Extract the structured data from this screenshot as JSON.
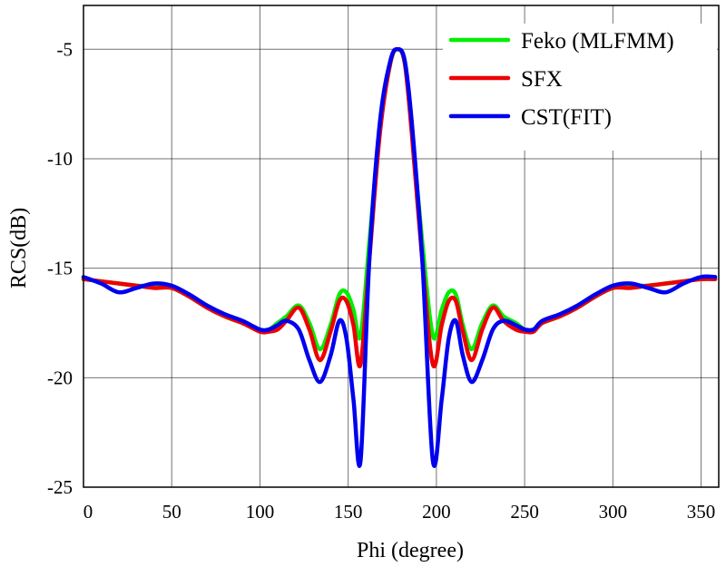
{
  "chart_data": {
    "type": "line",
    "title": "",
    "xlabel": "Phi  (degree)",
    "ylabel": "RCS(dB)",
    "xlim": [
      0,
      360
    ],
    "ylim": [
      -25,
      -3
    ],
    "xticks": [
      0,
      50,
      100,
      150,
      200,
      250,
      300,
      350
    ],
    "yticks": [
      -25,
      -20,
      -15,
      -10,
      -5
    ],
    "grid": true,
    "legend_position": "top-right",
    "x": [
      0,
      10,
      20,
      30,
      40,
      50,
      60,
      70,
      80,
      90,
      100,
      105,
      110,
      115,
      122,
      128,
      134,
      140,
      145,
      149,
      153,
      157,
      162,
      168,
      174,
      178,
      182,
      186,
      192,
      198,
      203,
      207,
      211,
      215,
      220,
      226,
      232,
      238,
      245,
      250,
      255,
      260,
      270,
      280,
      290,
      300,
      310,
      320,
      330,
      340,
      350,
      358
    ],
    "series": [
      {
        "name": "Feko (MLFMM)",
        "color": "#00ee00",
        "values": [
          -15.5,
          -15.6,
          -15.7,
          -15.8,
          -15.8,
          -15.9,
          -16.3,
          -16.8,
          -17.2,
          -17.5,
          -17.8,
          -17.8,
          -17.5,
          -17.2,
          -16.7,
          -17.5,
          -18.7,
          -17.6,
          -16.2,
          -16.1,
          -16.9,
          -18.1,
          -13.8,
          -8.6,
          -5.6,
          -5.0,
          -5.6,
          -8.6,
          -13.8,
          -18.1,
          -16.9,
          -16.1,
          -16.2,
          -17.6,
          -18.7,
          -17.5,
          -16.7,
          -17.2,
          -17.5,
          -17.8,
          -17.8,
          -17.5,
          -17.2,
          -16.8,
          -16.3,
          -15.9,
          -15.8,
          -15.8,
          -15.7,
          -15.6,
          -15.5,
          -15.5
        ]
      },
      {
        "name": "SFX",
        "color": "#ee0000",
        "values": [
          -15.5,
          -15.6,
          -15.7,
          -15.8,
          -15.9,
          -15.9,
          -16.3,
          -16.8,
          -17.2,
          -17.5,
          -17.9,
          -17.9,
          -17.8,
          -17.4,
          -16.8,
          -17.8,
          -19.2,
          -17.9,
          -16.5,
          -16.5,
          -17.6,
          -19.4,
          -14.6,
          -8.8,
          -5.6,
          -5.0,
          -5.6,
          -8.8,
          -14.6,
          -19.4,
          -17.6,
          -16.5,
          -16.5,
          -17.9,
          -19.2,
          -17.8,
          -16.8,
          -17.4,
          -17.8,
          -17.9,
          -17.9,
          -17.5,
          -17.2,
          -16.8,
          -16.3,
          -15.9,
          -15.9,
          -15.8,
          -15.7,
          -15.6,
          -15.5,
          -15.5
        ]
      },
      {
        "name": "CST(FIT)",
        "color": "#0000ee",
        "values": [
          -15.4,
          -15.7,
          -16.1,
          -15.9,
          -15.7,
          -15.8,
          -16.2,
          -16.7,
          -17.1,
          -17.4,
          -17.8,
          -17.8,
          -17.6,
          -17.4,
          -17.8,
          -19.2,
          -20.2,
          -19.0,
          -17.4,
          -18.2,
          -21.0,
          -23.8,
          -14.6,
          -8.3,
          -5.5,
          -5.0,
          -5.5,
          -8.3,
          -14.6,
          -23.8,
          -21.0,
          -18.2,
          -17.4,
          -19.0,
          -20.2,
          -19.2,
          -17.8,
          -17.4,
          -17.6,
          -17.8,
          -17.8,
          -17.4,
          -17.1,
          -16.7,
          -16.2,
          -15.8,
          -15.7,
          -15.9,
          -16.1,
          -15.7,
          -15.4,
          -15.4
        ]
      }
    ]
  }
}
